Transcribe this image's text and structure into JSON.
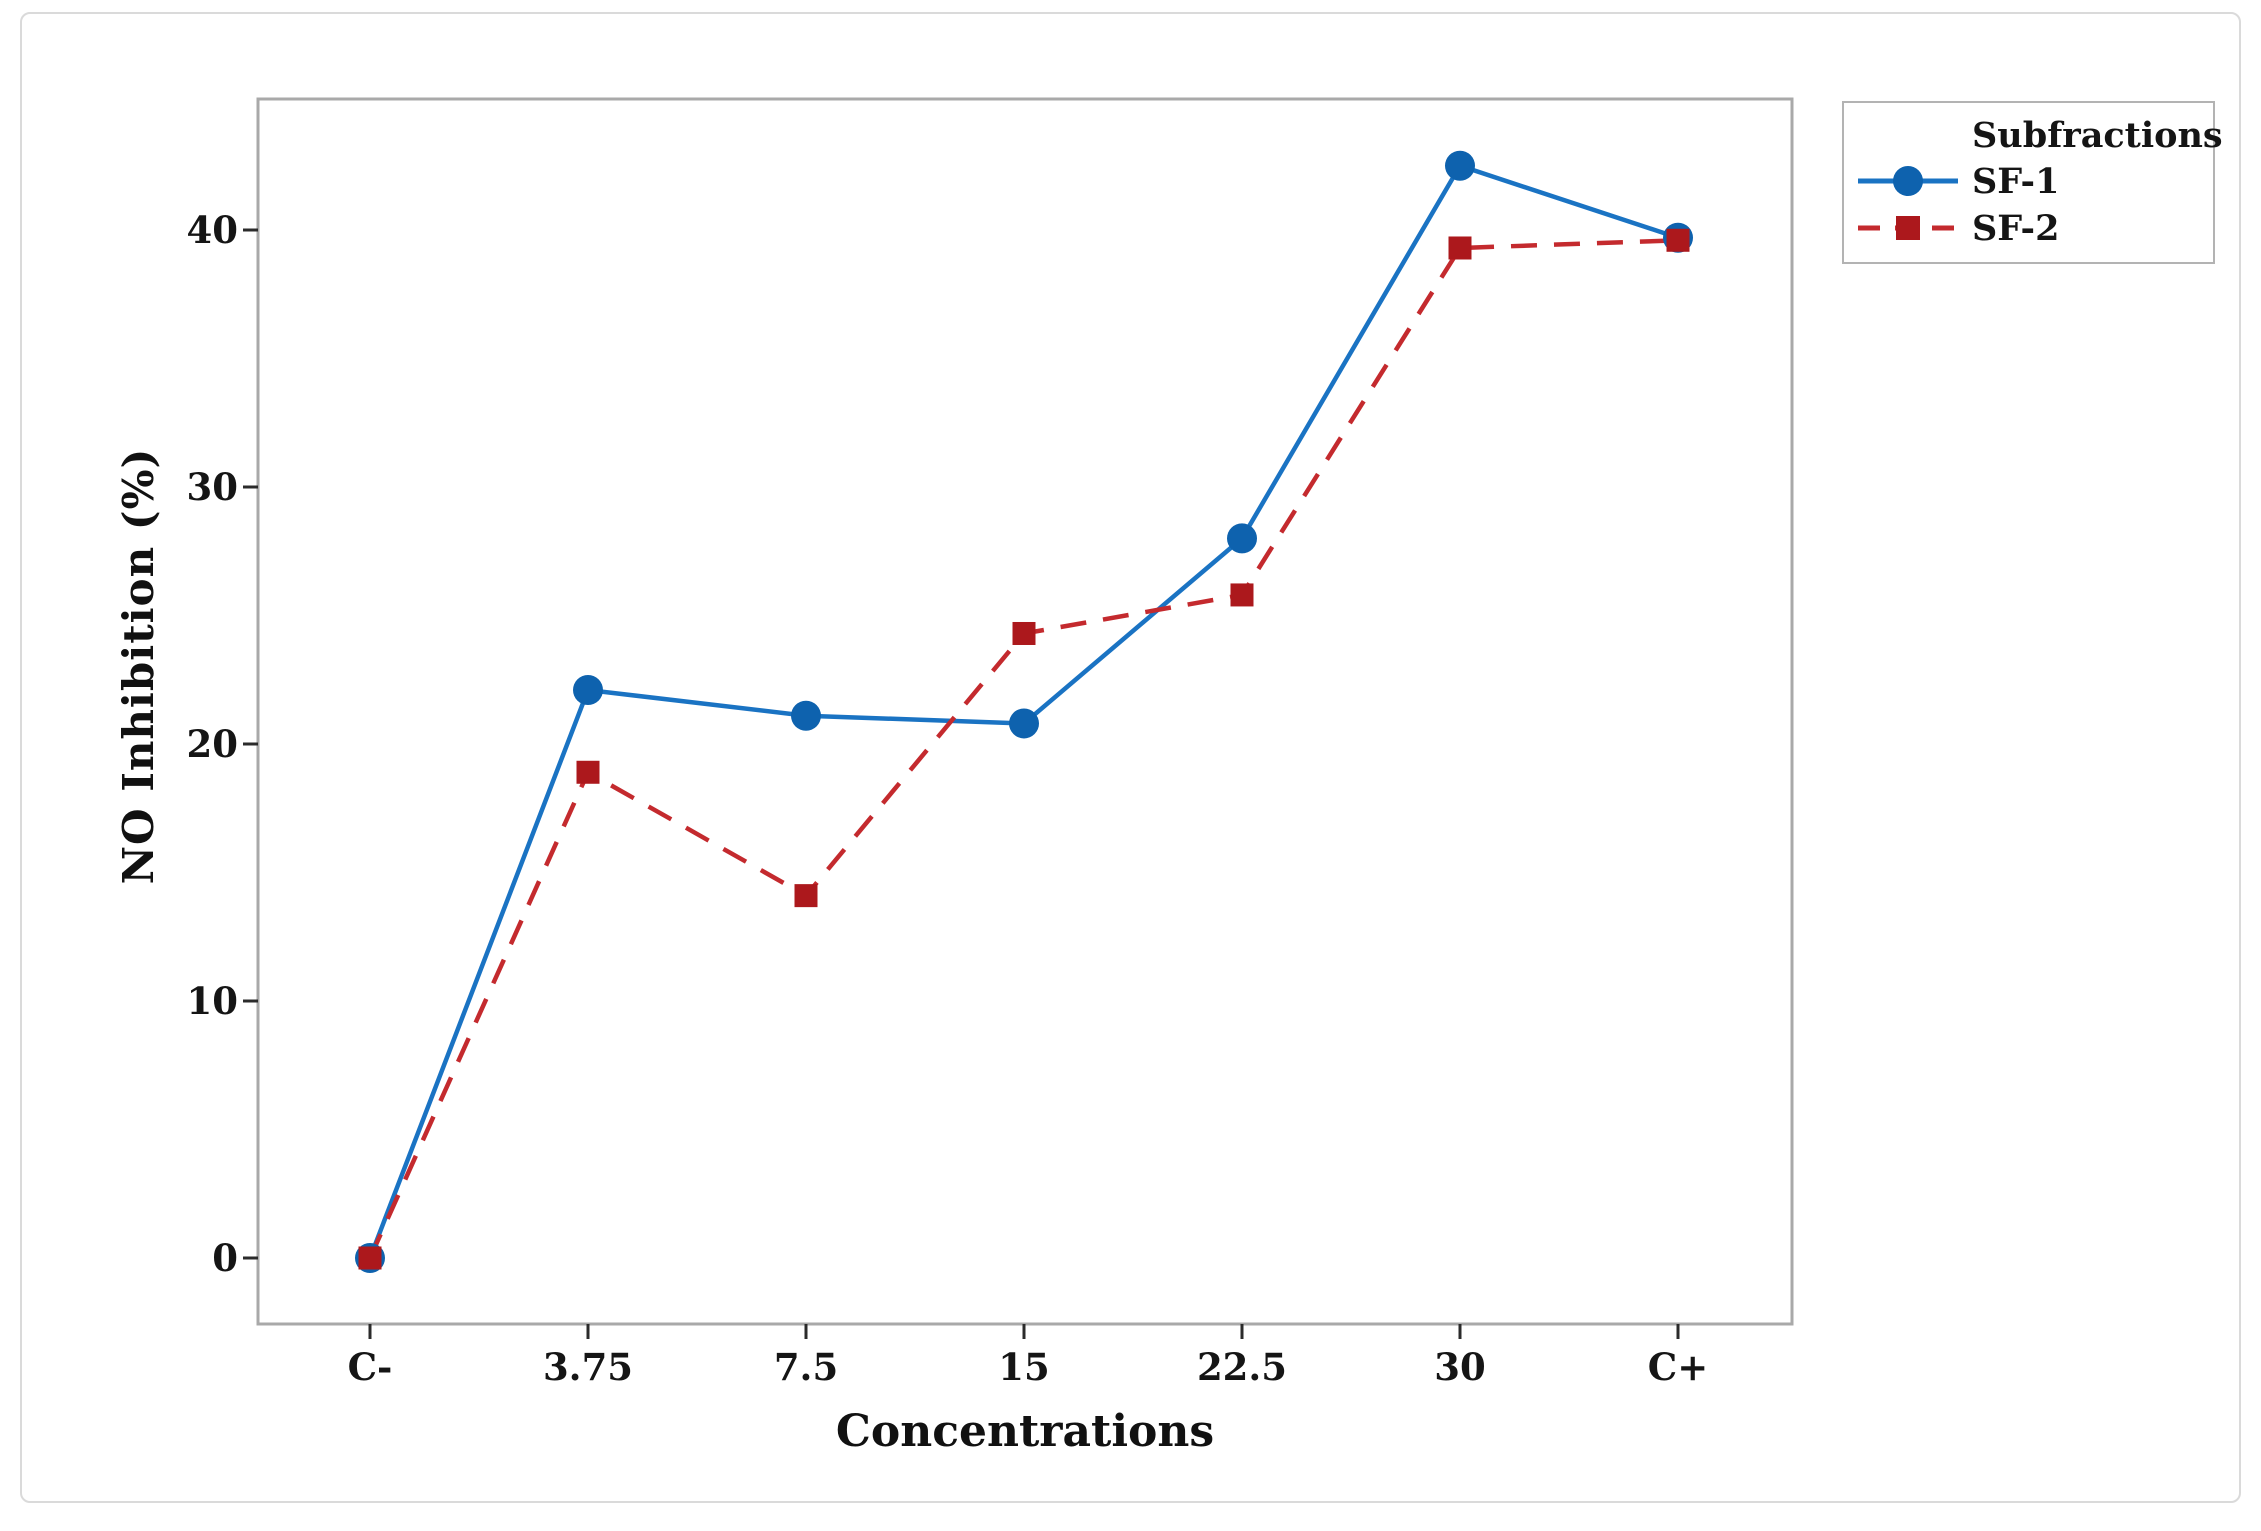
{
  "chart_data": {
    "type": "line",
    "title": "",
    "xlabel": "Concentrations",
    "ylabel": "NO Inhibition (%)",
    "categories": [
      "C-",
      "3.75",
      "7.5",
      "15",
      "22.5",
      "30",
      "C+"
    ],
    "y_ticks": [
      0,
      10,
      20,
      30,
      40
    ],
    "ylim": [
      -2.5,
      46
    ],
    "grid": false,
    "legend": {
      "title": "Subfractions",
      "position": "outside-top-right"
    },
    "series": [
      {
        "name": "SF-1",
        "marker": "circle",
        "line_style": "solid",
        "marker_color": "#0E62AE",
        "line_color": "#1A73C3",
        "values": [
          0,
          22.1,
          21.1,
          20.8,
          28.0,
          42.5,
          39.7
        ]
      },
      {
        "name": "SF-2",
        "marker": "square",
        "line_style": "dashed",
        "marker_color": "#AC181C",
        "line_color": "#C42A2E",
        "values": [
          0,
          18.9,
          14.1,
          24.3,
          25.8,
          39.3,
          39.6
        ]
      }
    ]
  }
}
